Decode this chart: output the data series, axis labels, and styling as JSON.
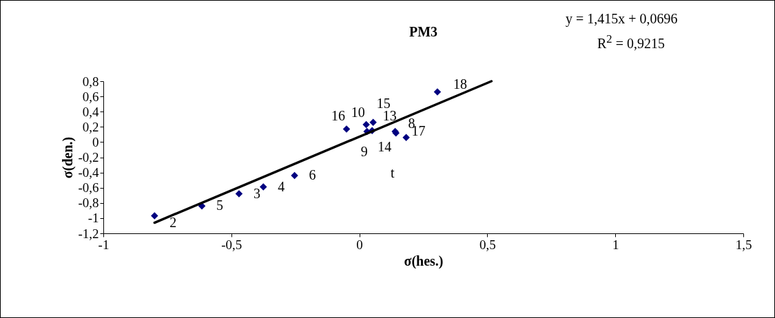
{
  "chart_data": {
    "type": "scatter",
    "title": "PM3",
    "xlabel": "σ(hes.)",
    "ylabel": "σ(den.)",
    "xlim": [
      -1,
      1.5
    ],
    "xticks": [
      -1,
      {
        "value": -0.5,
        "label": "-0,5"
      },
      0,
      {
        "value": 0.5,
        "label": "0,5"
      },
      1,
      {
        "value": 1.5,
        "label": "1,5"
      }
    ],
    "ylim": [
      -1.2,
      0.8
    ],
    "yticks": [
      {
        "value": -1.2,
        "label": "-1,2"
      },
      -1,
      {
        "value": -0.8,
        "label": "-0,8"
      },
      {
        "value": -0.6,
        "label": "-0,6"
      },
      {
        "value": -0.4,
        "label": "-0,4"
      },
      {
        "value": -0.2,
        "label": "-0,2"
      },
      0,
      {
        "value": 0.2,
        "label": "0,2"
      },
      {
        "value": 0.4,
        "label": "0,4"
      },
      {
        "value": 0.6,
        "label": "0,6"
      },
      {
        "value": 0.8,
        "label": "0,8"
      }
    ],
    "grid": false,
    "series": [
      {
        "color": "#000080",
        "marker": "diamond",
        "x": [
          -0.8,
          -0.615,
          -0.47,
          -0.375,
          -0.253,
          -0.05,
          0.027,
          0.03,
          0.054,
          0.05,
          0.143,
          0.14,
          0.183,
          0.305
        ],
        "values": [
          -0.97,
          -0.84,
          -0.68,
          -0.59,
          -0.44,
          0.17,
          0.23,
          0.14,
          0.26,
          0.15,
          0.12,
          0.14,
          0.06,
          0.66
        ]
      },
      {
        "type": "line",
        "color": "#000000",
        "x": [
          -0.8,
          0.516
        ],
        "values": [
          -1.06,
          0.8
        ]
      }
    ],
    "annotations": [
      "y = 1,415x + 0,0696",
      "R$^{2}$ = 0,9215",
      "t",
      {
        "text": "2",
        "x": -0.8,
        "y": -0.97
      },
      {
        "text": "5",
        "x": -0.615,
        "y": -0.84
      },
      {
        "text": "3",
        "x": -0.47,
        "y": -0.68
      },
      {
        "text": "4",
        "x": -0.375,
        "y": -0.59
      },
      {
        "text": "6",
        "x": -0.253,
        "y": -0.44
      },
      {
        "text": "16",
        "x": -0.05,
        "y": 0.17
      },
      {
        "text": "10",
        "x": 0.027,
        "y": 0.23
      },
      {
        "text": "9",
        "x": 0.03,
        "y": 0.14
      },
      {
        "text": "15",
        "x": 0.054,
        "y": 0.26
      },
      {
        "text": "14",
        "x": 0.05,
        "y": 0.15
      },
      {
        "text": "13",
        "x": 0.143,
        "y": 0.12
      },
      {
        "text": "8",
        "x": 0.14,
        "y": 0.14
      },
      {
        "text": "17",
        "x": 0.183,
        "y": 0.06
      },
      {
        "text": "18",
        "x": 0.305,
        "y": 0.66
      }
    ]
  }
}
